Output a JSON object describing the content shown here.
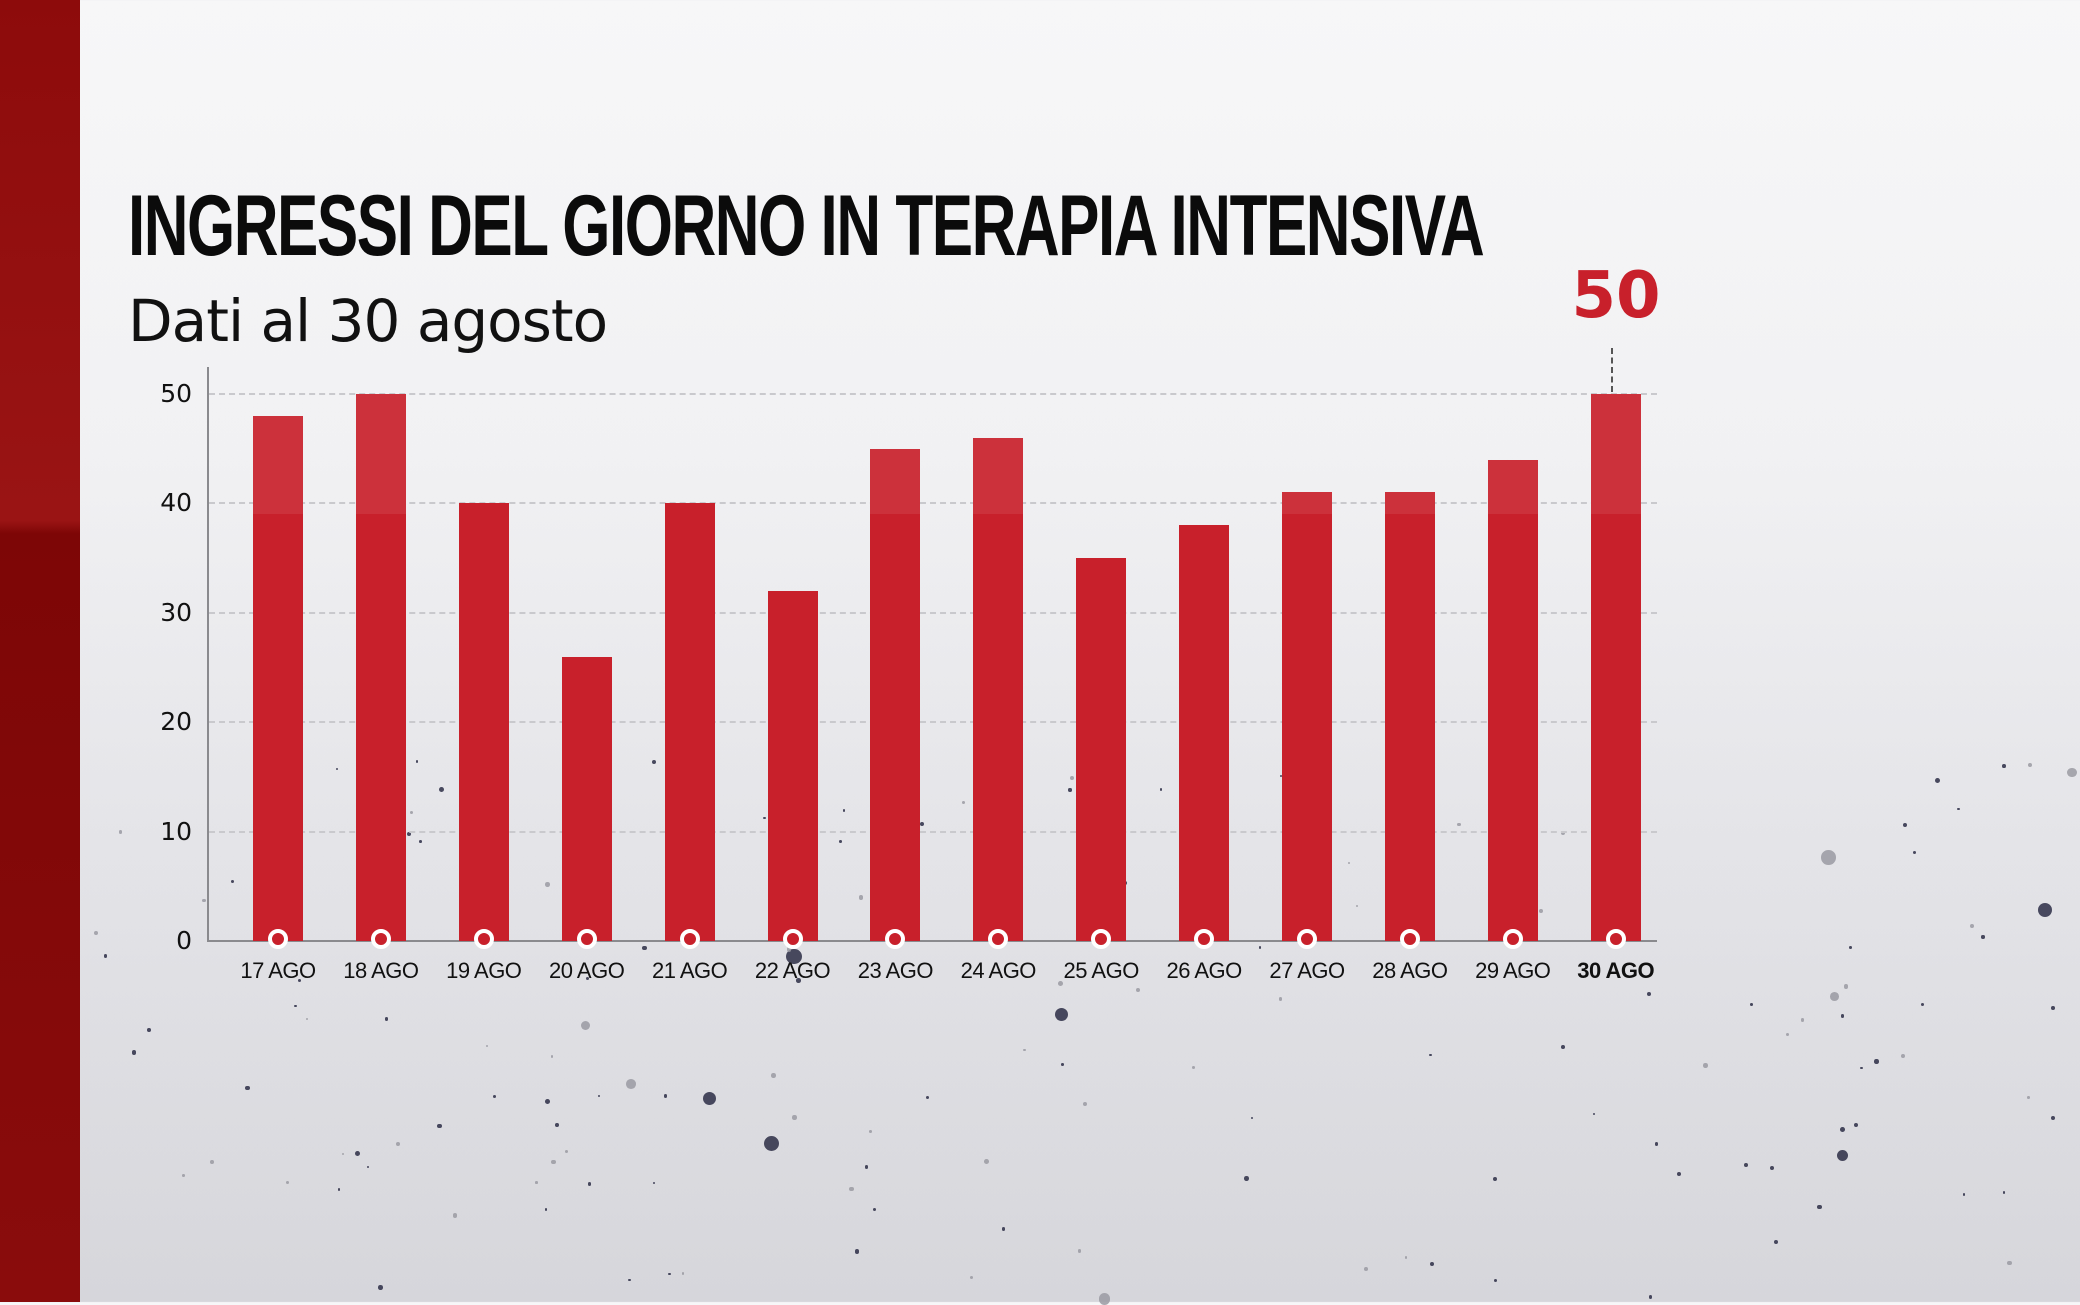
{
  "header": {
    "title": "INGRESSI DEL GIORNO IN TERAPIA INTENSIVA",
    "subtitle": "Dati al 30 agosto"
  },
  "highlight": {
    "label": "50",
    "category": "30 AGO",
    "color": "#c8202b"
  },
  "colors": {
    "bar": "#c8202b",
    "stripe": "#8d0b0b",
    "text": "#111111"
  },
  "chart_data": {
    "type": "bar",
    "title": "INGRESSI DEL GIORNO IN TERAPIA INTENSIVA",
    "subtitle": "Dati al 30 agosto",
    "xlabel": "",
    "ylabel": "",
    "categories": [
      "17 AGO",
      "18 AGO",
      "19 AGO",
      "20 AGO",
      "21 AGO",
      "22 AGO",
      "23 AGO",
      "24 AGO",
      "25 AGO",
      "26 AGO",
      "27 AGO",
      "28 AGO",
      "29 AGO",
      "30 AGO"
    ],
    "values": [
      48,
      50,
      40,
      26,
      40,
      32,
      45,
      46,
      35,
      38,
      41,
      41,
      44,
      50
    ],
    "ylim": [
      0,
      50
    ],
    "yticks": [
      "0",
      "10",
      "20",
      "30",
      "40",
      "50"
    ],
    "grid": true,
    "legend": null,
    "annotations": [
      {
        "category": "30 AGO",
        "text": "50"
      }
    ]
  }
}
